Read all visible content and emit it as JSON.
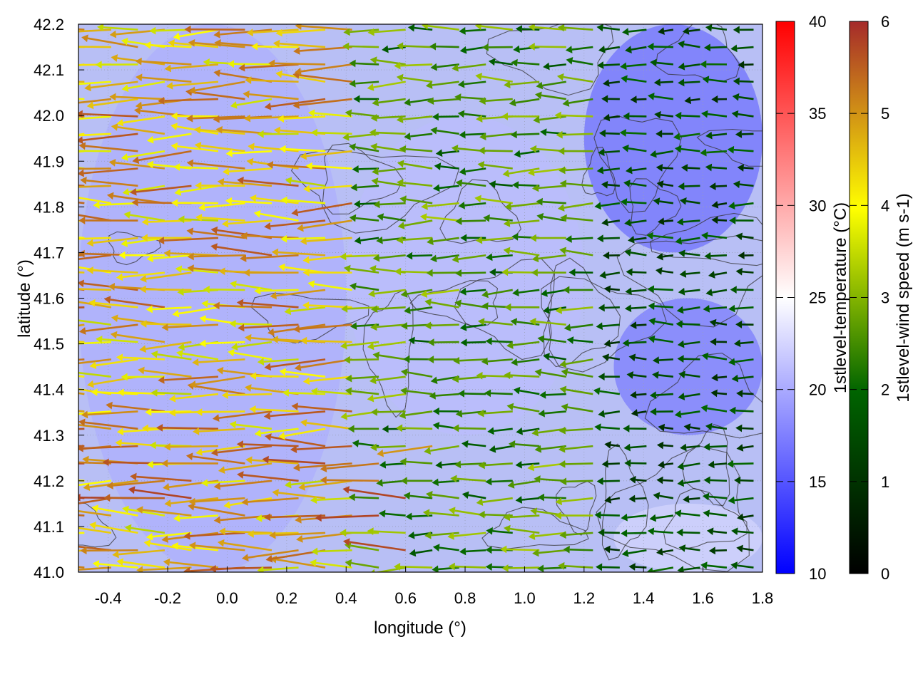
{
  "chart_data": {
    "type": "heatmap",
    "xlabel": "longitude (°)",
    "ylabel": "latitude (°)",
    "xlim": [
      -0.5,
      1.8
    ],
    "ylim": [
      41.0,
      42.2
    ],
    "x_ticks": [
      "-0.4",
      "-0.2",
      "0.0",
      "0.2",
      "0.4",
      "0.6",
      "0.8",
      "1.0",
      "1.2",
      "1.4",
      "1.6",
      "1.8"
    ],
    "y_ticks": [
      "41.0",
      "41.1",
      "41.2",
      "41.3",
      "41.4",
      "41.5",
      "41.6",
      "41.7",
      "41.8",
      "41.9",
      "42.0",
      "42.1",
      "42.2"
    ],
    "grid": true,
    "temperature_colorbar": {
      "label": "1stlevel-temperature (°C)",
      "range": [
        10,
        40
      ],
      "ticks": [
        "10",
        "15",
        "20",
        "25",
        "30",
        "35",
        "40"
      ],
      "colors": [
        "#0000ff",
        "#ffffff",
        "#ff0000"
      ]
    },
    "wind_colorbar": {
      "label": "1stlevel-wind speed (m s-1)",
      "range": [
        0,
        6
      ],
      "ticks": [
        "0",
        "1",
        "2",
        "3",
        "4",
        "5",
        "6"
      ],
      "colors": [
        "#000000",
        "#006400",
        "#ffff00",
        "#a52a2a"
      ]
    },
    "temperature_field": [
      {
        "region": "north-east",
        "lon": [
          1.2,
          1.8
        ],
        "lat": [
          41.7,
          42.2
        ],
        "value": 15
      },
      {
        "region": "west",
        "lon": [
          -0.5,
          0.4
        ],
        "lat": [
          41.0,
          42.2
        ],
        "value": 20
      },
      {
        "region": "centre",
        "lon": [
          0.4,
          1.2
        ],
        "lat": [
          41.3,
          42.0
        ],
        "value": 21
      },
      {
        "region": "south-east",
        "lon": [
          1.3,
          1.8
        ],
        "lat": [
          41.0,
          41.15
        ],
        "value": 23
      },
      {
        "region": "east-centre",
        "lon": [
          1.3,
          1.8
        ],
        "lat": [
          41.3,
          41.6
        ],
        "value": 16
      }
    ],
    "wind_field_summary": {
      "direction": "westward (easterly flow)",
      "speed_west_lowlands": 4.5,
      "speed_centre": 2.5,
      "speed_east": 1.5,
      "speed_max": 5.8
    }
  }
}
